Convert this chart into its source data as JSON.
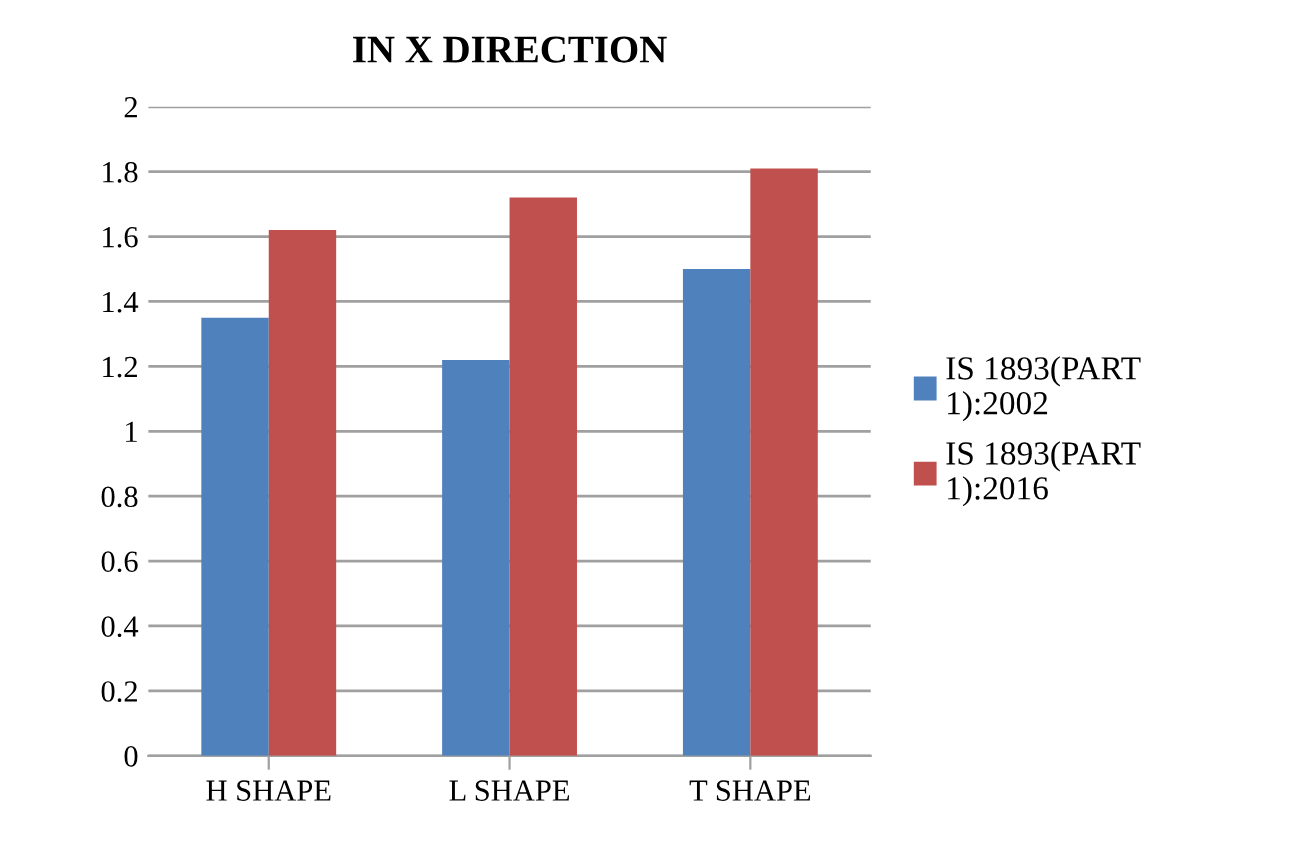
{
  "chart_data": {
    "type": "bar",
    "title": "IN X DIRECTION",
    "categories": [
      "H SHAPE",
      "L SHAPE",
      "T SHAPE"
    ],
    "series": [
      {
        "name": "IS 1893(PART\n1):2002",
        "color": "#4f81bd",
        "values": [
          1.35,
          1.22,
          1.5
        ]
      },
      {
        "name": "IS 1893(PART\n1):2016",
        "color": "#c0504d",
        "values": [
          1.62,
          1.72,
          1.81
        ]
      }
    ],
    "ylim": [
      0,
      2
    ],
    "yticks": [
      0,
      0.2,
      0.4,
      0.6,
      0.8,
      1,
      1.2,
      1.4,
      1.6,
      1.8,
      2
    ],
    "grid": "y",
    "legend": "right"
  }
}
